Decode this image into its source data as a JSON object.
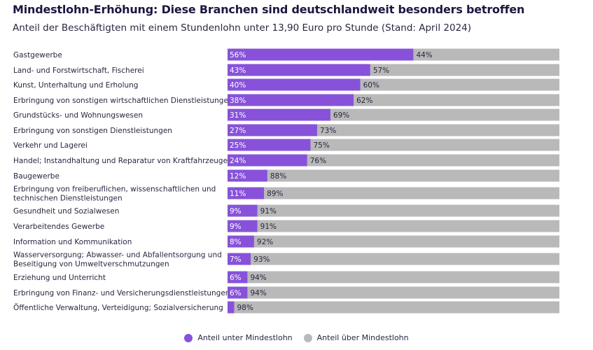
{
  "colors": {
    "below": "#8752d9",
    "above": "#b9b9b9",
    "label_text": "#2a2640",
    "bar_text_light": "#ffffff",
    "bar_text_dark": "#2a2640"
  },
  "chart_data": {
    "type": "bar",
    "orientation": "horizontal",
    "stacked": true,
    "title": "Mindestlohn-Erhöhung: Diese Branchen sind deutschlandweit besonders betroffen",
    "subtitle": "Anteil der Beschäftigten mit einem Stundenlohn unter 13,90 Euro pro Stunde (Stand: April 2024)",
    "xlim": [
      0,
      100
    ],
    "grid": false,
    "legend_position": "bottom",
    "categories": [
      [
        "Gastgewerbe"
      ],
      [
        "Land- und Forstwirtschaft, Fischerei"
      ],
      [
        "Kunst, Unterhaltung und Erholung"
      ],
      [
        "Erbringung von sonstigen wirtschaftlichen Dienstleistungen"
      ],
      [
        "Grundstücks- und Wohnungswesen"
      ],
      [
        "Erbringung von sonstigen Dienstleistungen"
      ],
      [
        "Verkehr und Lagerei"
      ],
      [
        "Handel; Instandhaltung und Reparatur von Kraftfahrzeugen"
      ],
      [
        "Baugewerbe"
      ],
      [
        "Erbringung von freiberuflichen, wissenschaftlichen und",
        "technischen Dienstleistungen"
      ],
      [
        "Gesundheit und Sozialwesen"
      ],
      [
        "Verarbeitendes Gewerbe"
      ],
      [
        "Information und Kommunikation"
      ],
      [
        "Wasserversorgung; Abwasser- und Abfallentsorgung und",
        "Beseitigung von Umweltverschmutzungen"
      ],
      [
        "Erziehung und Unterricht"
      ],
      [
        "Erbringung von Finanz- und Versicherungsdienstleistungen"
      ],
      [
        "Öffentliche Verwaltung, Verteidigung; Sozialversicherung"
      ]
    ],
    "series": [
      {
        "name": "Anteil unter Mindestlohn",
        "values": [
          56,
          43,
          40,
          38,
          31,
          27,
          25,
          24,
          12,
          11,
          9,
          9,
          8,
          7,
          6,
          6,
          2
        ]
      },
      {
        "name": "Anteil über Mindestlohn",
        "values": [
          44,
          57,
          60,
          62,
          69,
          73,
          75,
          76,
          88,
          89,
          91,
          91,
          92,
          93,
          94,
          94,
          98
        ]
      }
    ],
    "value_labels_shown": [
      [
        true,
        true
      ],
      [
        true,
        true
      ],
      [
        true,
        true
      ],
      [
        true,
        true
      ],
      [
        true,
        true
      ],
      [
        true,
        true
      ],
      [
        true,
        true
      ],
      [
        true,
        true
      ],
      [
        true,
        true
      ],
      [
        true,
        true
      ],
      [
        true,
        true
      ],
      [
        true,
        true
      ],
      [
        true,
        true
      ],
      [
        true,
        true
      ],
      [
        true,
        true
      ],
      [
        true,
        true
      ],
      [
        false,
        true
      ]
    ],
    "unit_suffix": "%"
  }
}
